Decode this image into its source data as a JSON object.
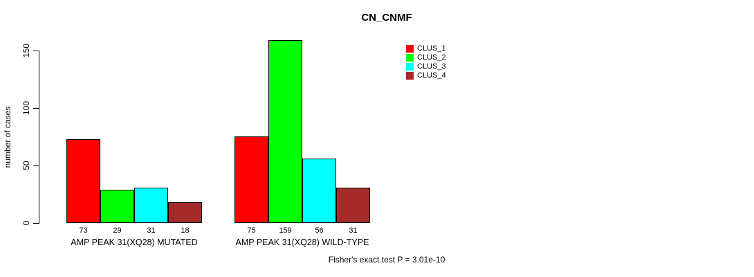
{
  "chart_data": {
    "type": "bar",
    "title": "CN_CNMF",
    "ylabel": "number of cases",
    "xlabel": "",
    "ylim": [
      0,
      150
    ],
    "yticks": [
      0,
      50,
      100,
      150
    ],
    "grid": false,
    "legend_position": "top-right",
    "categories": [
      "AMP PEAK 31(XQ28) MUTATED",
      "AMP PEAK 31(XQ28) WILD-TYPE"
    ],
    "series": [
      {
        "name": "CLUS_1",
        "color": "#FF0000",
        "values": [
          73,
          75
        ]
      },
      {
        "name": "CLUS_2",
        "color": "#00FF00",
        "values": [
          29,
          159
        ]
      },
      {
        "name": "CLUS_3",
        "color": "#00FFFF",
        "values": [
          31,
          56
        ]
      },
      {
        "name": "CLUS_4",
        "color": "#A52A2A",
        "values": [
          18,
          31
        ]
      }
    ],
    "annotation": "Fisher's exact test P = 3.01e-10"
  }
}
